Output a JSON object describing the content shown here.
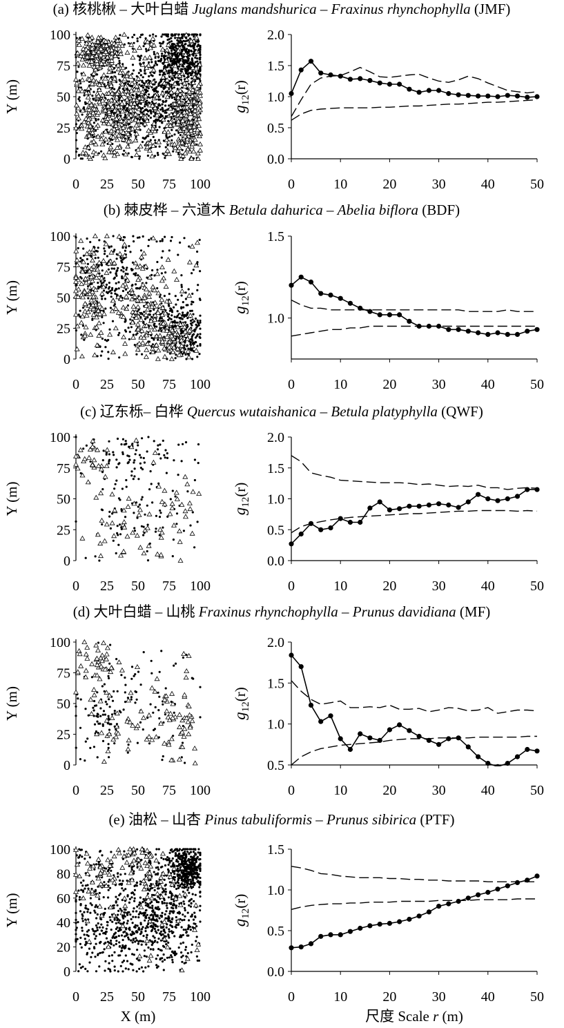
{
  "figure": {
    "scatter_xlabel": "X (m)",
    "scatter_ylabel": "Y (m)",
    "g_xlabel_cn": "尺度",
    "g_xlabel_en": "Scale",
    "g_xlabel_var": "r",
    "g_xlabel_unit": "(m)",
    "g_ylabel_g": "g",
    "g_ylabel_sub": "12",
    "g_ylabel_arg": "(r)"
  },
  "panels": [
    {
      "label": "(a)",
      "name_cn": "核桃楸 – 大叶白蜡",
      "name_latin_1": "Juglans mandshurica",
      "name_sep": " – ",
      "name_latin_2": "Fraxinus rhynchophylla",
      "code": "(JMF)"
    },
    {
      "label": "(b)",
      "name_cn": "棘皮桦 – 六道木",
      "name_latin_1": "Betula dahurica",
      "name_sep": " – ",
      "name_latin_2": "Abelia biflora",
      "code": "(BDF)"
    },
    {
      "label": "(c)",
      "name_cn": "辽东栎– 白桦",
      "name_latin_1": "Quercus wutaishanica",
      "name_sep": " – ",
      "name_latin_2": "Betula platyphylla",
      "code": "(QWF)"
    },
    {
      "label": "(d)",
      "name_cn": "大叶白蜡 – 山桃",
      "name_latin_1": "Fraxinus rhynchophylla",
      "name_sep": " – ",
      "name_latin_2": "Prunus davidiana",
      "code": "(MF)"
    },
    {
      "label": "(e)",
      "name_cn": "油松 – 山杏",
      "name_latin_1": "Pinus tabuliformis",
      "name_sep": " – ",
      "name_latin_2": "Prunus sibirica",
      "code": "(PTF)"
    }
  ],
  "chart_data": [
    {
      "panel": "(a)",
      "type": "scatter",
      "role": "point-pattern",
      "xlim": [
        0,
        100
      ],
      "ylim": [
        0,
        100
      ],
      "xticks": [
        "0",
        "25",
        "50",
        "75",
        "100"
      ],
      "yticks": [
        "0",
        "25",
        "50",
        "75",
        "100"
      ],
      "series": [
        {
          "marker": "dot",
          "count": 1400,
          "density": "high",
          "clusters": [
            [
              55,
              45,
              25,
              20
            ],
            [
              85,
              80,
              12,
              15
            ]
          ]
        },
        {
          "marker": "triangle",
          "count": 900,
          "density": "high",
          "clusters": [
            [
              30,
              40,
              18,
              22
            ],
            [
              20,
              85,
              8,
              6
            ],
            [
              90,
              35,
              8,
              20
            ]
          ]
        }
      ]
    },
    {
      "panel": "(a)",
      "type": "line",
      "role": "g12",
      "xlim": [
        0,
        50
      ],
      "ylim": [
        0,
        2
      ],
      "xticks": [
        "0",
        "10",
        "20",
        "30",
        "40",
        "50"
      ],
      "yticks": [
        "0.0",
        "0.5",
        "1.0",
        "1.5",
        "2.0"
      ],
      "x": [
        0,
        2,
        4,
        6,
        8,
        10,
        12,
        14,
        16,
        18,
        20,
        22,
        24,
        26,
        28,
        30,
        32,
        34,
        36,
        38,
        40,
        42,
        44,
        46,
        48,
        50
      ],
      "series": [
        {
          "role": "observed",
          "values": [
            1.05,
            1.43,
            1.57,
            1.38,
            1.35,
            1.33,
            1.28,
            1.29,
            1.26,
            1.22,
            1.2,
            1.2,
            1.12,
            1.07,
            1.1,
            1.1,
            1.05,
            1.03,
            1.02,
            1.01,
            1.01,
            1.0,
            1.02,
            1.01,
            0.99,
            1.0
          ]
        },
        {
          "role": "upper-envelope",
          "values": [
            0.68,
            0.95,
            1.2,
            1.3,
            1.33,
            1.34,
            1.4,
            1.47,
            1.4,
            1.32,
            1.31,
            1.33,
            1.35,
            1.36,
            1.3,
            1.25,
            1.23,
            1.27,
            1.33,
            1.29,
            1.22,
            1.16,
            1.1,
            1.08,
            1.06,
            1.08
          ]
        },
        {
          "role": "lower-envelope",
          "values": [
            0.62,
            0.72,
            0.78,
            0.8,
            0.81,
            0.82,
            0.82,
            0.82,
            0.82,
            0.83,
            0.83,
            0.84,
            0.85,
            0.85,
            0.86,
            0.87,
            0.88,
            0.88,
            0.89,
            0.9,
            0.91,
            0.91,
            0.92,
            0.93,
            0.94,
            0.95
          ]
        }
      ]
    },
    {
      "panel": "(b)",
      "type": "scatter",
      "role": "point-pattern",
      "xlim": [
        0,
        100
      ],
      "ylim": [
        0,
        100
      ],
      "xticks": [
        "0",
        "25",
        "50",
        "75",
        "100"
      ],
      "yticks": [
        "0",
        "25",
        "50",
        "75",
        "100"
      ],
      "series": [
        {
          "marker": "dot",
          "count": 650,
          "density": "medium",
          "clusters": [
            [
              30,
              70,
              18,
              18
            ],
            [
              70,
              30,
              18,
              15
            ],
            [
              90,
              20,
              8,
              15
            ]
          ]
        },
        {
          "marker": "triangle",
          "count": 330,
          "density": "medium",
          "clusters": [
            [
              12,
              55,
              12,
              25
            ],
            [
              55,
              45,
              12,
              20
            ],
            [
              75,
              20,
              10,
              10
            ]
          ]
        }
      ]
    },
    {
      "panel": "(b)",
      "type": "line",
      "role": "g12",
      "xlim": [
        0,
        50
      ],
      "ylim": [
        0.75,
        1.5
      ],
      "xticks": [
        "0",
        "10",
        "20",
        "30",
        "40",
        "50"
      ],
      "yticks": [
        "1.0",
        "1.5"
      ],
      "x": [
        0,
        2,
        4,
        6,
        8,
        10,
        12,
        14,
        16,
        18,
        20,
        22,
        24,
        26,
        28,
        30,
        32,
        34,
        36,
        38,
        40,
        42,
        44,
        46,
        48,
        50
      ],
      "series": [
        {
          "role": "observed",
          "values": [
            1.2,
            1.25,
            1.22,
            1.15,
            1.14,
            1.12,
            1.09,
            1.06,
            1.04,
            1.02,
            1.02,
            1.02,
            0.98,
            0.95,
            0.95,
            0.95,
            0.93,
            0.93,
            0.92,
            0.91,
            0.9,
            0.91,
            0.9,
            0.9,
            0.92,
            0.93
          ]
        },
        {
          "role": "upper-envelope",
          "values": [
            1.11,
            1.08,
            1.06,
            1.06,
            1.05,
            1.05,
            1.05,
            1.05,
            1.05,
            1.05,
            1.05,
            1.05,
            1.05,
            1.05,
            1.05,
            1.05,
            1.05,
            1.05,
            1.04,
            1.04,
            1.04,
            1.04,
            1.05,
            1.04,
            1.04,
            1.04
          ]
        },
        {
          "role": "lower-envelope",
          "values": [
            0.89,
            0.9,
            0.91,
            0.92,
            0.93,
            0.93,
            0.94,
            0.94,
            0.95,
            0.95,
            0.95,
            0.95,
            0.95,
            0.95,
            0.95,
            0.95,
            0.95,
            0.95,
            0.95,
            0.95,
            0.95,
            0.95,
            0.95,
            0.95,
            0.95,
            0.95
          ]
        }
      ]
    },
    {
      "panel": "(c)",
      "type": "scatter",
      "role": "point-pattern",
      "xlim": [
        0,
        100
      ],
      "ylim": [
        0,
        100
      ],
      "xticks": [
        "0",
        "25",
        "50",
        "75",
        "100"
      ],
      "yticks": [
        "0",
        "25",
        "50",
        "75",
        "100"
      ],
      "series": [
        {
          "marker": "dot",
          "count": 180,
          "density": "low",
          "clusters": [
            [
              40,
              88,
              22,
              8
            ],
            [
              50,
              45,
              25,
              25
            ]
          ]
        },
        {
          "marker": "triangle",
          "count": 95,
          "density": "low",
          "clusters": [
            [
              10,
              80,
              8,
              12
            ],
            [
              35,
              30,
              15,
              15
            ],
            [
              80,
              30,
              12,
              25
            ]
          ]
        }
      ]
    },
    {
      "panel": "(c)",
      "type": "line",
      "role": "g12",
      "xlim": [
        0,
        50
      ],
      "ylim": [
        0,
        2
      ],
      "xticks": [
        "0",
        "10",
        "20",
        "30",
        "40",
        "50"
      ],
      "yticks": [
        "0.0",
        "0.5",
        "1.0",
        "1.5",
        "2.0"
      ],
      "x": [
        0,
        2,
        4,
        6,
        8,
        10,
        12,
        14,
        16,
        18,
        20,
        22,
        24,
        26,
        28,
        30,
        32,
        34,
        36,
        38,
        40,
        42,
        44,
        46,
        48,
        50
      ],
      "series": [
        {
          "role": "observed",
          "values": [
            0.27,
            0.43,
            0.6,
            0.5,
            0.53,
            0.68,
            0.62,
            0.62,
            0.85,
            0.95,
            0.82,
            0.84,
            0.88,
            0.88,
            0.9,
            0.92,
            0.9,
            0.86,
            0.95,
            1.07,
            1.0,
            0.97,
            1.0,
            1.04,
            1.15,
            1.15
          ]
        },
        {
          "role": "upper-envelope",
          "values": [
            1.7,
            1.6,
            1.42,
            1.38,
            1.35,
            1.3,
            1.29,
            1.28,
            1.27,
            1.26,
            1.26,
            1.26,
            1.25,
            1.23,
            1.24,
            1.22,
            1.2,
            1.21,
            1.2,
            1.22,
            1.18,
            1.18,
            1.15,
            1.17,
            1.18,
            1.17
          ]
        },
        {
          "role": "lower-envelope",
          "values": [
            0.45,
            0.55,
            0.6,
            0.63,
            0.66,
            0.68,
            0.7,
            0.71,
            0.72,
            0.73,
            0.74,
            0.75,
            0.76,
            0.76,
            0.77,
            0.78,
            0.79,
            0.8,
            0.8,
            0.81,
            0.81,
            0.81,
            0.81,
            0.8,
            0.81,
            0.8
          ]
        }
      ]
    },
    {
      "panel": "(d)",
      "type": "scatter",
      "role": "point-pattern",
      "xlim": [
        0,
        100
      ],
      "ylim": [
        0,
        100
      ],
      "xticks": [
        "0",
        "25",
        "50",
        "75",
        "100"
      ],
      "yticks": [
        "0",
        "25",
        "50",
        "75",
        "100"
      ],
      "series": [
        {
          "marker": "dot",
          "count": 160,
          "density": "low",
          "clusters": [
            [
              55,
              55,
              25,
              25
            ],
            [
              20,
              40,
              12,
              20
            ]
          ]
        },
        {
          "marker": "triangle",
          "count": 130,
          "density": "low",
          "clusters": [
            [
              10,
              75,
              8,
              15
            ],
            [
              45,
              35,
              20,
              12
            ],
            [
              80,
              30,
              12,
              15
            ],
            [
              25,
              85,
              12,
              8
            ]
          ]
        }
      ]
    },
    {
      "panel": "(d)",
      "type": "line",
      "role": "g12",
      "xlim": [
        0,
        50
      ],
      "ylim": [
        0.5,
        2
      ],
      "xticks": [
        "0",
        "10",
        "20",
        "30",
        "40",
        "50"
      ],
      "yticks": [
        "0.5",
        "1.0",
        "1.5",
        "2.0"
      ],
      "x": [
        0,
        2,
        4,
        6,
        8,
        10,
        12,
        14,
        16,
        18,
        20,
        22,
        24,
        26,
        28,
        30,
        32,
        34,
        36,
        38,
        40,
        42,
        44,
        46,
        48,
        50
      ],
      "series": [
        {
          "role": "observed",
          "values": [
            1.84,
            1.7,
            1.23,
            1.03,
            1.1,
            0.82,
            0.69,
            0.88,
            0.83,
            0.8,
            0.93,
            0.99,
            0.92,
            0.85,
            0.8,
            0.75,
            0.82,
            0.83,
            0.72,
            0.6,
            0.52,
            0.48,
            0.52,
            0.6,
            0.69,
            0.67
          ]
        },
        {
          "role": "upper-envelope",
          "values": [
            1.53,
            1.4,
            1.3,
            1.24,
            1.26,
            1.28,
            1.2,
            1.2,
            1.21,
            1.2,
            1.23,
            1.18,
            1.18,
            1.19,
            1.15,
            1.17,
            1.2,
            1.19,
            1.16,
            1.17,
            1.2,
            1.13,
            1.15,
            1.17,
            1.17,
            1.16
          ]
        },
        {
          "role": "lower-envelope",
          "values": [
            0.5,
            0.6,
            0.66,
            0.7,
            0.72,
            0.74,
            0.75,
            0.76,
            0.77,
            0.78,
            0.8,
            0.81,
            0.82,
            0.82,
            0.82,
            0.83,
            0.83,
            0.83,
            0.83,
            0.84,
            0.84,
            0.84,
            0.84,
            0.84,
            0.85,
            0.85
          ]
        }
      ]
    },
    {
      "panel": "(e)",
      "type": "scatter",
      "role": "point-pattern",
      "xlim": [
        0,
        100
      ],
      "ylim": [
        0,
        100
      ],
      "xticks": [
        "0",
        "25",
        "50",
        "75",
        "100"
      ],
      "yticks": [
        "0",
        "20",
        "40",
        "60",
        "80",
        "100"
      ],
      "series": [
        {
          "marker": "dot",
          "count": 1300,
          "density": "high",
          "clusters": [
            [
              35,
              35,
              25,
              22
            ],
            [
              75,
              55,
              18,
              25
            ],
            [
              90,
              85,
              8,
              10
            ]
          ]
        },
        {
          "marker": "triangle",
          "count": 130,
          "density": "low",
          "clusters": [
            [
              20,
              80,
              12,
              12
            ],
            [
              45,
              95,
              10,
              5
            ],
            [
              65,
              75,
              12,
              12
            ]
          ]
        }
      ]
    },
    {
      "panel": "(e)",
      "type": "line",
      "role": "g12",
      "xlim": [
        0,
        50
      ],
      "ylim": [
        0,
        1.5
      ],
      "xticks": [
        "0",
        "10",
        "20",
        "30",
        "40",
        "50"
      ],
      "yticks": [
        "0.0",
        "0.5",
        "1.0",
        "1.5"
      ],
      "x": [
        0,
        2,
        4,
        6,
        8,
        10,
        12,
        14,
        16,
        18,
        20,
        22,
        24,
        26,
        28,
        30,
        32,
        34,
        36,
        38,
        40,
        42,
        44,
        46,
        48,
        50
      ],
      "series": [
        {
          "role": "observed",
          "values": [
            0.29,
            0.3,
            0.34,
            0.43,
            0.45,
            0.45,
            0.49,
            0.53,
            0.56,
            0.58,
            0.59,
            0.61,
            0.64,
            0.68,
            0.73,
            0.8,
            0.83,
            0.86,
            0.9,
            0.94,
            0.97,
            1.01,
            1.05,
            1.09,
            1.12,
            1.17
          ]
        },
        {
          "role": "upper-envelope",
          "values": [
            1.29,
            1.27,
            1.24,
            1.2,
            1.19,
            1.17,
            1.16,
            1.15,
            1.15,
            1.15,
            1.14,
            1.14,
            1.13,
            1.13,
            1.12,
            1.12,
            1.11,
            1.11,
            1.11,
            1.11,
            1.1,
            1.1,
            1.1,
            1.1,
            1.1,
            1.1
          ]
        },
        {
          "role": "lower-envelope",
          "values": [
            0.76,
            0.79,
            0.81,
            0.82,
            0.83,
            0.83,
            0.84,
            0.84,
            0.85,
            0.85,
            0.85,
            0.86,
            0.86,
            0.86,
            0.86,
            0.87,
            0.87,
            0.87,
            0.87,
            0.88,
            0.88,
            0.88,
            0.88,
            0.89,
            0.89,
            0.89
          ]
        }
      ]
    }
  ]
}
